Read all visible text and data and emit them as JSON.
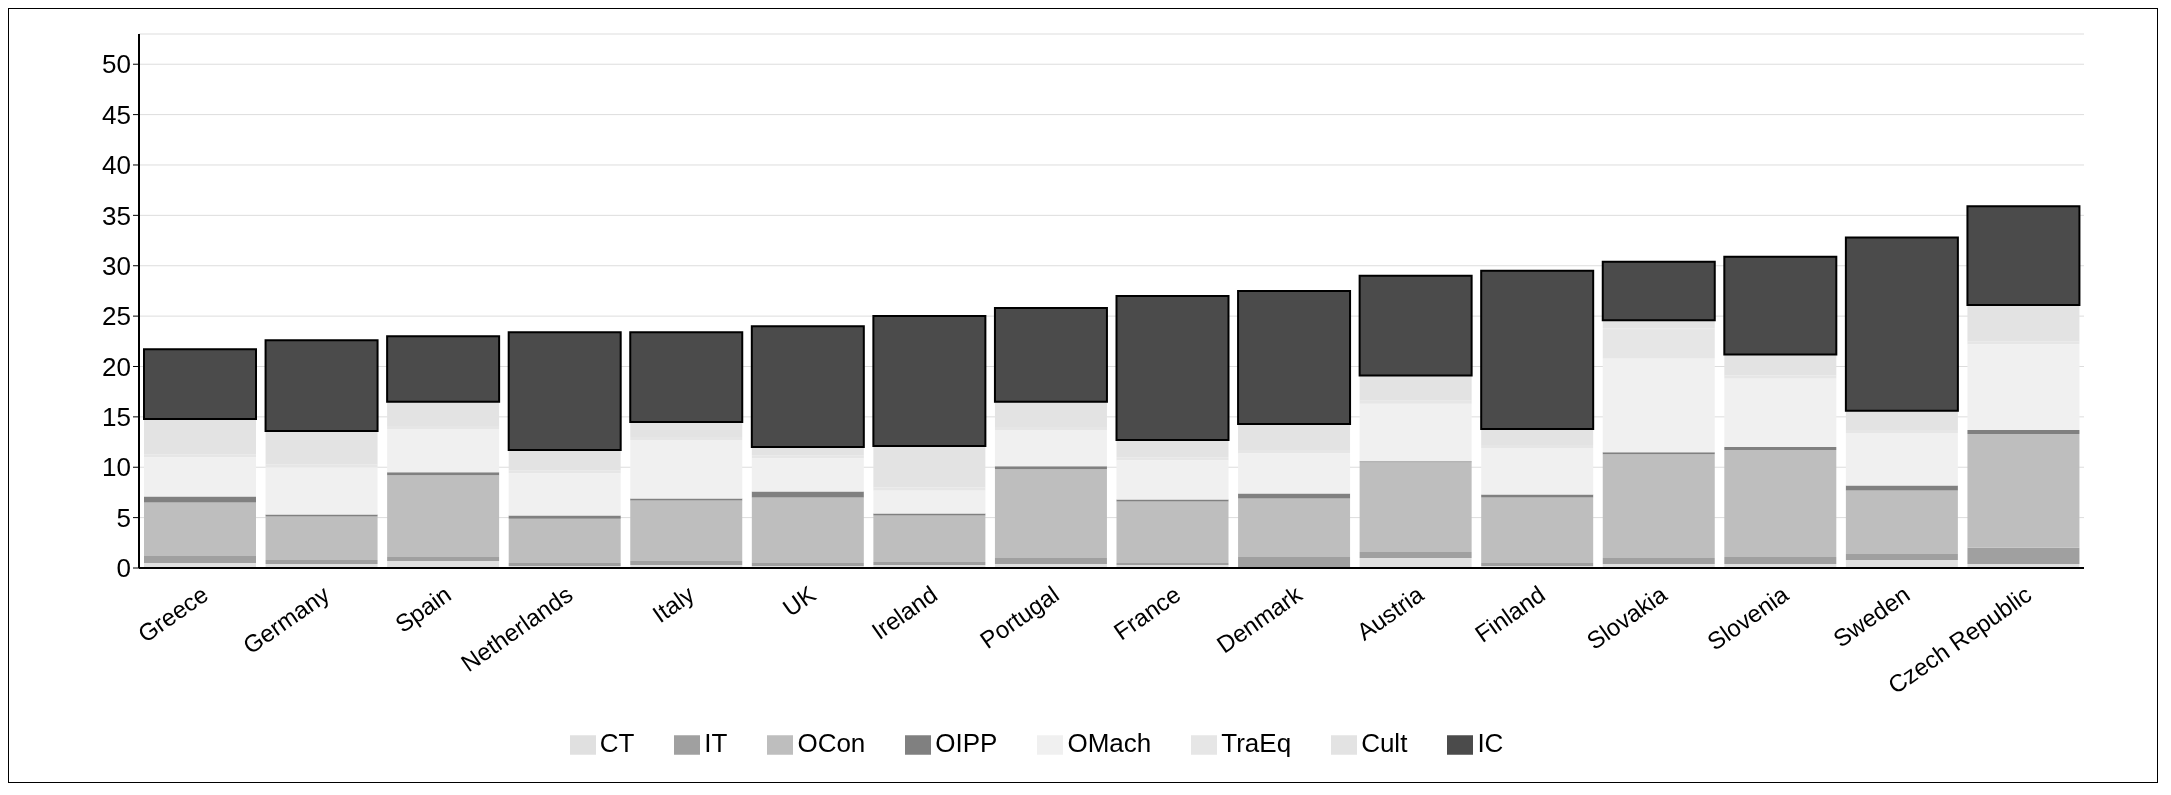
{
  "chart_data": {
    "type": "bar",
    "stacked": true,
    "categories": [
      "Greece",
      "Germany",
      "Spain",
      "Netherlands",
      "Italy",
      "UK",
      "Ireland",
      "Portugal",
      "France",
      "Denmark",
      "Austria",
      "Finland",
      "Slovakia",
      "Slovenia",
      "Sweden",
      "Czech Republic"
    ],
    "series": [
      {
        "name": "CT",
        "color": "#e0e0e0",
        "values": [
          0.5,
          0.4,
          0.7,
          0.2,
          0.3,
          0.2,
          0.3,
          0.4,
          0.3,
          0.1,
          1.0,
          0.2,
          0.4,
          0.4,
          0.8,
          0.4
        ]
      },
      {
        "name": "IT",
        "color": "#a0a0a0",
        "values": [
          0.7,
          0.4,
          0.4,
          0.3,
          0.4,
          0.3,
          0.3,
          0.6,
          0.2,
          1.0,
          0.6,
          0.3,
          0.6,
          0.7,
          0.6,
          1.6
        ]
      },
      {
        "name": "OCon",
        "color": "#bebebe",
        "values": [
          5.3,
          4.3,
          8.1,
          4.4,
          6.0,
          6.5,
          4.6,
          8.8,
          6.1,
          5.8,
          8.9,
          6.5,
          10.3,
          10.6,
          6.3,
          11.3
        ]
      },
      {
        "name": "OIPP",
        "color": "#808080",
        "values": [
          0.6,
          0.2,
          0.3,
          0.3,
          0.2,
          0.6,
          0.2,
          0.3,
          0.2,
          0.5,
          0.1,
          0.3,
          0.2,
          0.3,
          0.5,
          0.4
        ]
      },
      {
        "name": "OMach",
        "color": "#f0f0f0",
        "values": [
          3.9,
          4.7,
          4.3,
          4.2,
          5.8,
          3.3,
          2.3,
          3.6,
          3.9,
          4.0,
          5.7,
          4.6,
          9.3,
          6.8,
          5.2,
          8.5
        ]
      },
      {
        "name": "TraEq",
        "color": "#e6e6e6",
        "values": [
          0.3,
          0.3,
          0.3,
          0.3,
          0.3,
          0.3,
          0.3,
          0.3,
          0.3,
          0.3,
          0.3,
          0.3,
          3.0,
          0.3,
          0.3,
          0.3
        ]
      },
      {
        "name": "Cult",
        "color": "#e3e3e3",
        "values": [
          3.5,
          3.3,
          2.4,
          2.0,
          1.5,
          0.8,
          4.1,
          2.5,
          1.7,
          2.6,
          2.5,
          1.6,
          0.8,
          2.1,
          1.9,
          3.6
        ]
      },
      {
        "name": "IC",
        "color": "#4b4b4b",
        "values": [
          6.9,
          9.0,
          6.5,
          11.7,
          8.9,
          12.0,
          12.9,
          9.3,
          14.3,
          13.2,
          9.9,
          15.7,
          5.8,
          9.7,
          17.2,
          9.8
        ]
      }
    ],
    "ylim": [
      0,
      53
    ],
    "yticks": [
      0,
      5,
      10,
      15,
      20,
      25,
      30,
      35,
      40,
      45,
      50
    ],
    "grid": "y",
    "legend": "bottom"
  }
}
